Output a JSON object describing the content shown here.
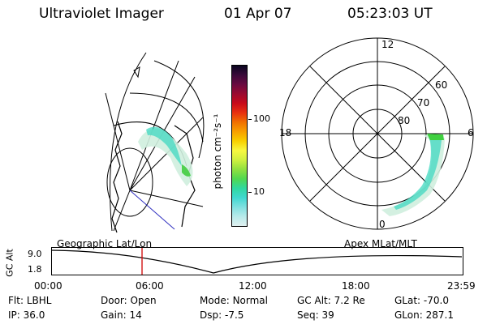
{
  "header": {
    "title": "Ultraviolet Imager",
    "date": "01 Apr 07",
    "time": "05:23:03 UT"
  },
  "colorbar": {
    "unit_label": "photon cm⁻²s⁻¹",
    "ticks": [
      "100",
      "10"
    ],
    "colors": [
      "#0a0620",
      "#3a0a3a",
      "#6a0a40",
      "#9a0a30",
      "#c80a1a",
      "#e83010",
      "#f07000",
      "#f8a000",
      "#f8d000",
      "#f8f840",
      "#d0f040",
      "#90e040",
      "#50d850",
      "#30d8a0",
      "#40d8d0",
      "#80e0e0",
      "#b8eaea",
      "#e0f0f0"
    ]
  },
  "left_map": {
    "label": "Geographic Lat/Lon"
  },
  "right_map": {
    "label": "Apex MLat/MLT",
    "mlt_labels": {
      "top": "12",
      "left": "18",
      "right": "6",
      "bottom": "0"
    },
    "lat_labels": [
      "60",
      "70",
      "80"
    ]
  },
  "altitude_plot": {
    "y_label": "GC Alt",
    "y_ticks": [
      "9.0",
      "1.8"
    ],
    "x_ticks": [
      "00:00",
      "06:00",
      "12:00",
      "18:00",
      "23:59"
    ],
    "marker_color": "#d00000"
  },
  "footer": {
    "row1": [
      {
        "key": "Flt:",
        "val": "LBHL"
      },
      {
        "key": "Door:",
        "val": "Open"
      },
      {
        "key": "Mode:",
        "val": "Normal"
      },
      {
        "key": "GC Alt:",
        "val": "7.2 Re"
      },
      {
        "key": "GLat:",
        "val": "-70.0"
      }
    ],
    "row2": [
      {
        "key": "IP:",
        "val": "36.0"
      },
      {
        "key": "Gain:",
        "val": "14"
      },
      {
        "key": "Dsp:",
        "val": "-7.5"
      },
      {
        "key": "Seq:",
        "val": "39"
      },
      {
        "key": "GLon:",
        "val": "287.1"
      }
    ]
  }
}
